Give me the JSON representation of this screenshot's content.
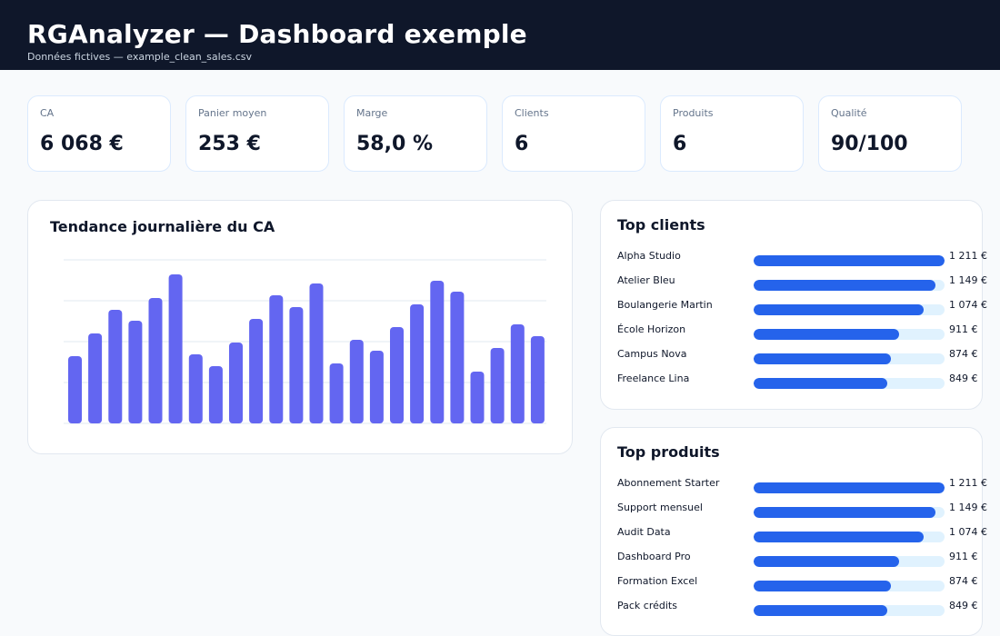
{
  "header": {
    "title": "RGAnalyzer — Dashboard exemple",
    "subtitle": "Données fictives — example_clean_sales.csv"
  },
  "kpis": [
    {
      "label": "CA",
      "value": "6 068 €"
    },
    {
      "label": "Panier moyen",
      "value": "253 €"
    },
    {
      "label": "Marge",
      "value": "58,0 %"
    },
    {
      "label": "Clients",
      "value": "6"
    },
    {
      "label": "Produits",
      "value": "6"
    },
    {
      "label": "Qualité",
      "value": "90/100"
    }
  ],
  "trend": {
    "title": "Tendance journalière du CA"
  },
  "chart_data": {
    "type": "bar",
    "title": "Tendance journalière du CA",
    "values": [
      74,
      99,
      125,
      113,
      138,
      164,
      76,
      63,
      89,
      115,
      141,
      128,
      154,
      66,
      92,
      80,
      106,
      131,
      157,
      145,
      57,
      83,
      109,
      96
    ],
    "ylim": [
      0,
      180
    ],
    "grid": true,
    "color": "#6366f1"
  },
  "top_clients": {
    "title": "Top clients",
    "items": [
      {
        "name": "Alpha Studio",
        "amount": "1 211 €",
        "share": 1.0
      },
      {
        "name": "Atelier Bleu",
        "amount": "1 149 €",
        "share": 0.95
      },
      {
        "name": "Boulangerie Martin",
        "amount": "1 074 €",
        "share": 0.89
      },
      {
        "name": "École Horizon",
        "amount": "911 €",
        "share": 0.76
      },
      {
        "name": "Campus Nova",
        "amount": "874 €",
        "share": 0.72
      },
      {
        "name": "Freelance Lina",
        "amount": "849 €",
        "share": 0.7
      }
    ]
  },
  "top_products": {
    "title": "Top produits",
    "items": [
      {
        "name": "Abonnement Starter",
        "amount": "1 211 €",
        "share": 1.0
      },
      {
        "name": "Support mensuel",
        "amount": "1 149 €",
        "share": 0.95
      },
      {
        "name": "Audit Data",
        "amount": "1 074 €",
        "share": 0.89
      },
      {
        "name": "Dashboard Pro",
        "amount": "911 €",
        "share": 0.76
      },
      {
        "name": "Formation Excel",
        "amount": "874 €",
        "share": 0.72
      },
      {
        "name": "Pack crédits",
        "amount": "849 €",
        "share": 0.7
      }
    ]
  },
  "colors": {
    "header_bg": "#0f172a",
    "bar": "#6366f1",
    "rank_fill": "#2563eb",
    "rank_track": "#e0f2fe"
  }
}
